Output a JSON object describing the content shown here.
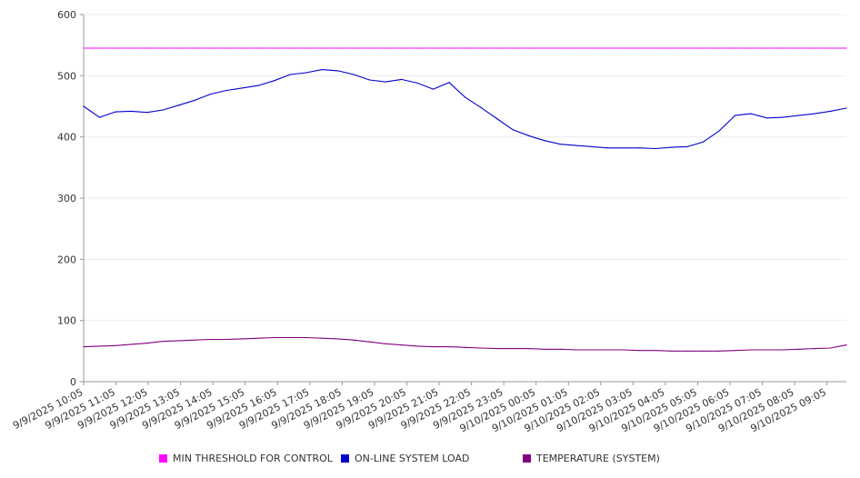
{
  "chart_data": {
    "type": "line",
    "title": "",
    "xlabel": "",
    "ylabel": "",
    "ylim": [
      0,
      600
    ],
    "yticks": [
      "0",
      "100",
      "200",
      "300",
      "400",
      "500",
      "600"
    ],
    "grid": true,
    "legend_position": "bottom",
    "x_tick_labels": [
      "9/9/2025 10:05",
      "9/9/2025 11:05",
      "9/9/2025 12:05",
      "9/9/2025 13:05",
      "9/9/2025 14:05",
      "9/9/2025 15:05",
      "9/9/2025 16:05",
      "9/9/2025 17:05",
      "9/9/2025 18:05",
      "9/9/2025 19:05",
      "9/9/2025 20:05",
      "9/9/2025 21:05",
      "9/9/2025 22:05",
      "9/9/2025 23:05",
      "9/10/2025 00:05",
      "9/10/2025 01:05",
      "9/10/2025 02:05",
      "9/10/2025 03:05",
      "9/10/2025 04:05",
      "9/10/2025 05:05",
      "9/10/2025 06:05",
      "9/10/2025 07:05",
      "9/10/2025 08:05",
      "9/10/2025 09:05"
    ],
    "x": [
      "9/9/2025 10:05",
      "9/9/2025 10:30",
      "9/9/2025 11:05",
      "9/9/2025 11:35",
      "9/9/2025 12:05",
      "9/9/2025 12:35",
      "9/9/2025 13:05",
      "9/9/2025 13:35",
      "9/9/2025 14:05",
      "9/9/2025 14:35",
      "9/9/2025 15:05",
      "9/9/2025 15:35",
      "9/9/2025 16:05",
      "9/9/2025 16:35",
      "9/9/2025 17:05",
      "9/9/2025 17:35",
      "9/9/2025 18:05",
      "9/9/2025 18:35",
      "9/9/2025 19:05",
      "9/9/2025 19:35",
      "9/9/2025 20:05",
      "9/9/2025 20:35",
      "9/9/2025 21:05",
      "9/9/2025 21:35",
      "9/9/2025 22:05",
      "9/9/2025 22:35",
      "9/9/2025 23:05",
      "9/9/2025 23:35",
      "9/10/2025 00:05",
      "9/10/2025 00:35",
      "9/10/2025 01:05",
      "9/10/2025 01:35",
      "9/10/2025 02:05",
      "9/10/2025 02:35",
      "9/10/2025 03:05",
      "9/10/2025 03:35",
      "9/10/2025 04:05",
      "9/10/2025 04:35",
      "9/10/2025 05:05",
      "9/10/2025 05:35",
      "9/10/2025 06:05",
      "9/10/2025 06:35",
      "9/10/2025 07:05",
      "9/10/2025 07:35",
      "9/10/2025 08:05",
      "9/10/2025 08:35",
      "9/10/2025 09:05",
      "9/10/2025 09:35",
      "9/10/2025 10:00"
    ],
    "series": [
      {
        "name": "MIN THRESHOLD FOR CONTROL",
        "color": "#ff00ff",
        "values": [
          545,
          545,
          545,
          545,
          545,
          545,
          545,
          545,
          545,
          545,
          545,
          545,
          545,
          545,
          545,
          545,
          545,
          545,
          545,
          545,
          545,
          545,
          545,
          545,
          545,
          545,
          545,
          545,
          545,
          545,
          545,
          545,
          545,
          545,
          545,
          545,
          545,
          545,
          545,
          545,
          545,
          545,
          545,
          545,
          545,
          545,
          545,
          545,
          545
        ]
      },
      {
        "name": "ON-LINE SYSTEM LOAD",
        "color": "#0000cc",
        "values": [
          450,
          432,
          441,
          442,
          440,
          444,
          452,
          460,
          470,
          476,
          480,
          484,
          492,
          502,
          505,
          510,
          508,
          502,
          493,
          490,
          494,
          488,
          478,
          489,
          465,
          448,
          430,
          412,
          402,
          394,
          388,
          386,
          384,
          382,
          382,
          382,
          381,
          383,
          384,
          392,
          410,
          435,
          438,
          431,
          432,
          435,
          438,
          442,
          447
        ]
      },
      {
        "name": "TEMPERATURE (SYSTEM)",
        "color": "#800080",
        "values": [
          57,
          58,
          59,
          61,
          63,
          66,
          67,
          68,
          69,
          69,
          70,
          71,
          72,
          72,
          72,
          71,
          70,
          68,
          65,
          62,
          60,
          58,
          57,
          57,
          56,
          55,
          54,
          54,
          54,
          53,
          53,
          52,
          52,
          52,
          52,
          51,
          51,
          50,
          50,
          50,
          50,
          51,
          52,
          52,
          52,
          53,
          54,
          55,
          60
        ]
      }
    ]
  }
}
